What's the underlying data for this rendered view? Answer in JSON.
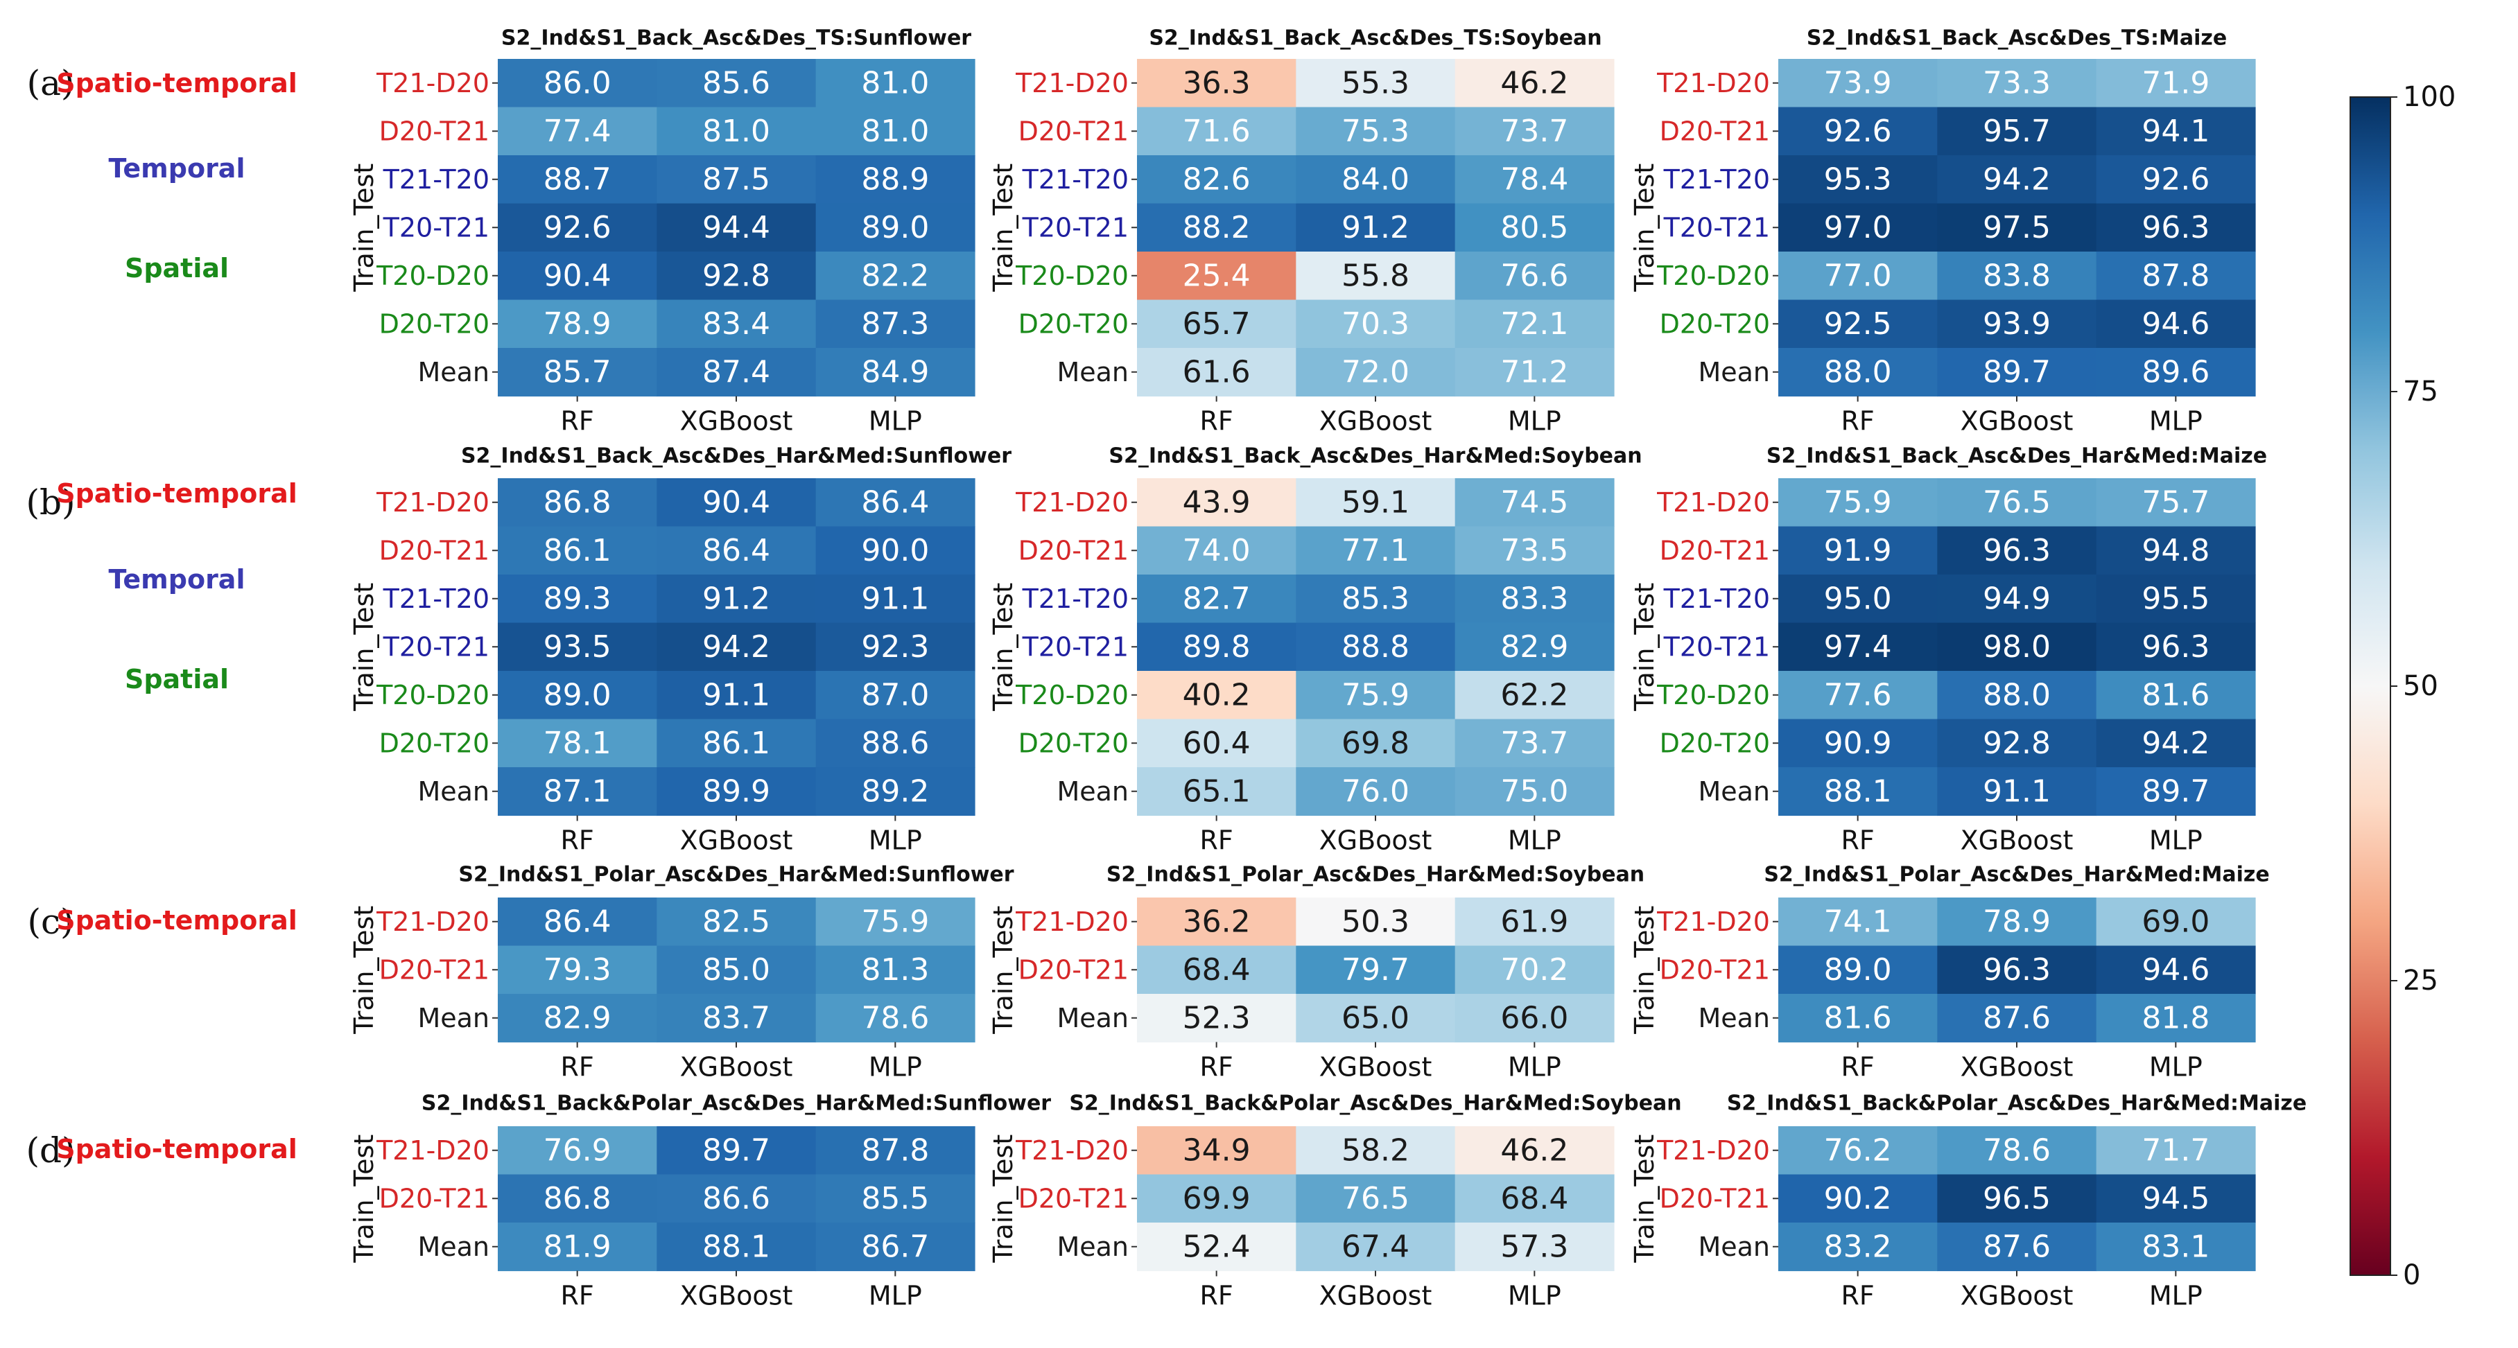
{
  "chart_data": {
    "type": "heatmap",
    "colorbar": {
      "min": 0,
      "max": 100,
      "ticks": [
        "0",
        "25",
        "50",
        "75",
        "100"
      ],
      "colormap": "RdBu",
      "low_color": "#67001f",
      "mid_color": "#f7f7f7",
      "high_color": "#053061"
    },
    "columns": [
      "RF",
      "XGBoost",
      "MLP"
    ],
    "ylabel": "Train_Test",
    "row_colors": {
      "T21-D20": "#d62728",
      "D20-T21": "#d62728",
      "T21-T20": "#1f1fa0",
      "T20-T21": "#1f1fa0",
      "T20-D20": "#1a8a1a",
      "D20-T20": "#1a8a1a",
      "Mean": "#1a1a1a"
    },
    "groups": [
      {
        "label": "(a)",
        "categories": [
          {
            "text": "Spatio-temporal",
            "color": "#e31a1c"
          },
          {
            "text": "Temporal",
            "color": "#3a3ab0"
          },
          {
            "text": "Spatial",
            "color": "#1a8a1a"
          }
        ],
        "rows": [
          "T21-D20",
          "D20-T21",
          "T21-T20",
          "T20-T21",
          "T20-D20",
          "D20-T20",
          "Mean"
        ],
        "panels": [
          {
            "title": "S2_Ind&S1_Back_Asc&Des_TS:Sunflower",
            "values": [
              [
                86.0,
                85.6,
                81.0
              ],
              [
                77.4,
                81.0,
                81.0
              ],
              [
                88.7,
                87.5,
                88.9
              ],
              [
                92.6,
                94.4,
                89.0
              ],
              [
                90.4,
                92.8,
                82.2
              ],
              [
                78.9,
                83.4,
                87.3
              ],
              [
                85.7,
                87.4,
                84.9
              ]
            ]
          },
          {
            "title": "S2_Ind&S1_Back_Asc&Des_TS:Soybean",
            "values": [
              [
                36.3,
                55.3,
                46.2
              ],
              [
                71.6,
                75.3,
                73.7
              ],
              [
                82.6,
                84.0,
                78.4
              ],
              [
                88.2,
                91.2,
                80.5
              ],
              [
                25.4,
                55.8,
                76.6
              ],
              [
                65.7,
                70.3,
                72.1
              ],
              [
                61.6,
                72.0,
                71.2
              ]
            ]
          },
          {
            "title": "S2_Ind&S1_Back_Asc&Des_TS:Maize",
            "values": [
              [
                73.9,
                73.3,
                71.9
              ],
              [
                92.6,
                95.7,
                94.1
              ],
              [
                95.3,
                94.2,
                92.6
              ],
              [
                97.0,
                97.5,
                96.3
              ],
              [
                77.0,
                83.8,
                87.8
              ],
              [
                92.5,
                93.9,
                94.6
              ],
              [
                88.0,
                89.7,
                89.6
              ]
            ]
          }
        ]
      },
      {
        "label": "(b)",
        "categories": [
          {
            "text": "Spatio-temporal",
            "color": "#e31a1c"
          },
          {
            "text": "Temporal",
            "color": "#3a3ab0"
          },
          {
            "text": "Spatial",
            "color": "#1a8a1a"
          }
        ],
        "rows": [
          "T21-D20",
          "D20-T21",
          "T21-T20",
          "T20-T21",
          "T20-D20",
          "D20-T20",
          "Mean"
        ],
        "panels": [
          {
            "title": "S2_Ind&S1_Back_Asc&Des_Har&Med:Sunflower",
            "values": [
              [
                86.8,
                90.4,
                86.4
              ],
              [
                86.1,
                86.4,
                90.0
              ],
              [
                89.3,
                91.2,
                91.1
              ],
              [
                93.5,
                94.2,
                92.3
              ],
              [
                89.0,
                91.1,
                87.0
              ],
              [
                78.1,
                86.1,
                88.6
              ],
              [
                87.1,
                89.9,
                89.2
              ]
            ]
          },
          {
            "title": "S2_Ind&S1_Back_Asc&Des_Har&Med:Soybean",
            "values": [
              [
                43.9,
                59.1,
                74.5
              ],
              [
                74.0,
                77.1,
                73.5
              ],
              [
                82.7,
                85.3,
                83.3
              ],
              [
                89.8,
                88.8,
                82.9
              ],
              [
                40.2,
                75.9,
                62.2
              ],
              [
                60.4,
                69.8,
                73.7
              ],
              [
                65.1,
                76.0,
                75.0
              ]
            ]
          },
          {
            "title": "S2_Ind&S1_Back_Asc&Des_Har&Med:Maize",
            "values": [
              [
                75.9,
                76.5,
                75.7
              ],
              [
                91.9,
                96.3,
                94.8
              ],
              [
                95.0,
                94.9,
                95.5
              ],
              [
                97.4,
                98.0,
                96.3
              ],
              [
                77.6,
                88.0,
                81.6
              ],
              [
                90.9,
                92.8,
                94.2
              ],
              [
                88.1,
                91.1,
                89.7
              ]
            ]
          }
        ]
      },
      {
        "label": "(c)",
        "categories": [
          {
            "text": "Spatio-temporal",
            "color": "#e31a1c"
          }
        ],
        "rows": [
          "T21-D20",
          "D20-T21",
          "Mean"
        ],
        "panels": [
          {
            "title": "S2_Ind&S1_Polar_Asc&Des_Har&Med:Sunflower",
            "values": [
              [
                86.4,
                82.5,
                75.9
              ],
              [
                79.3,
                85.0,
                81.3
              ],
              [
                82.9,
                83.7,
                78.6
              ]
            ]
          },
          {
            "title": "S2_Ind&S1_Polar_Asc&Des_Har&Med:Soybean",
            "values": [
              [
                36.2,
                50.3,
                61.9
              ],
              [
                68.4,
                79.7,
                70.2
              ],
              [
                52.3,
                65.0,
                66.0
              ]
            ]
          },
          {
            "title": "S2_Ind&S1_Polar_Asc&Des_Har&Med:Maize",
            "values": [
              [
                74.1,
                78.9,
                69.0
              ],
              [
                89.0,
                96.3,
                94.6
              ],
              [
                81.6,
                87.6,
                81.8
              ]
            ]
          }
        ]
      },
      {
        "label": "(d)",
        "categories": [
          {
            "text": "Spatio-temporal",
            "color": "#e31a1c"
          }
        ],
        "rows": [
          "T21-D20",
          "D20-T21",
          "Mean"
        ],
        "panels": [
          {
            "title": "S2_Ind&S1_Back&Polar_Asc&Des_Har&Med:Sunflower",
            "values": [
              [
                76.9,
                89.7,
                87.8
              ],
              [
                86.8,
                86.6,
                85.5
              ],
              [
                81.9,
                88.1,
                86.7
              ]
            ]
          },
          {
            "title": "S2_Ind&S1_Back&Polar_Asc&Des_Har&Med:Soybean",
            "values": [
              [
                34.9,
                58.2,
                46.2
              ],
              [
                69.9,
                76.5,
                68.4
              ],
              [
                52.4,
                67.4,
                57.3
              ]
            ]
          },
          {
            "title": "S2_Ind&S1_Back&Polar_Asc&Des_Har&Med:Maize",
            "values": [
              [
                76.2,
                78.6,
                71.7
              ],
              [
                90.2,
                96.5,
                94.5
              ],
              [
                83.2,
                87.6,
                83.1
              ]
            ]
          }
        ]
      }
    ]
  }
}
